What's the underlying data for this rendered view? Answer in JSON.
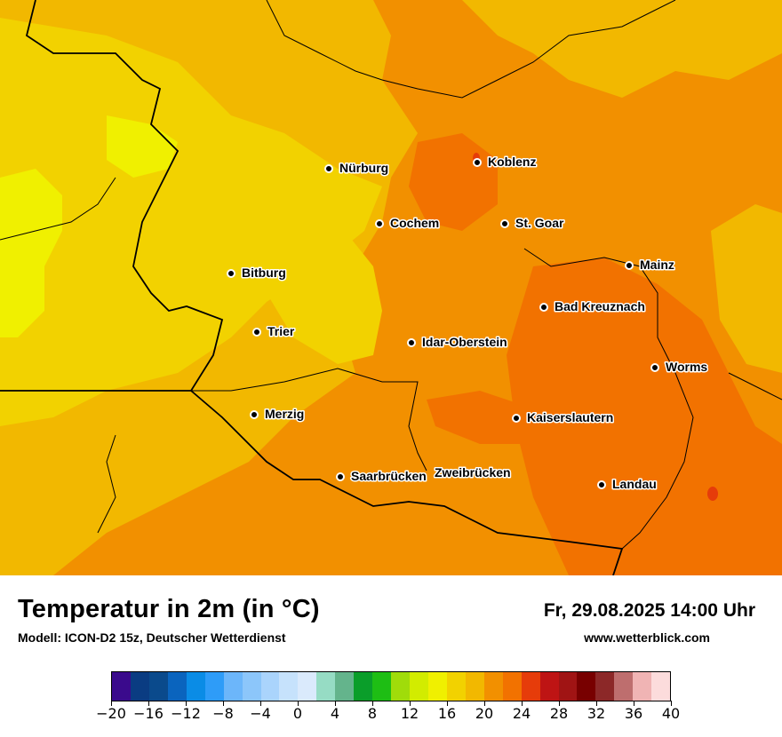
{
  "map": {
    "cities": [
      {
        "name": "Nürburg",
        "value": ""
      },
      {
        "name": "Koblenz"
      },
      {
        "name": "Cochem"
      },
      {
        "name": "St. Goar"
      },
      {
        "name": "Mainz"
      },
      {
        "name": "Bitburg"
      },
      {
        "name": "Bad Kreuznach"
      },
      {
        "name": "Trier"
      },
      {
        "name": "Idar-Oberstein"
      },
      {
        "name": "Worms"
      },
      {
        "name": "Merzig"
      },
      {
        "name": "Kaiserslautern"
      },
      {
        "name": "Saarbrücken"
      },
      {
        "name": "Zweibrücken"
      },
      {
        "name": "Landau"
      }
    ]
  },
  "footer": {
    "title": "Temperatur in 2m (in °C)",
    "model": "Modell: ICON-D2 15z, Deutscher Wetterdienst",
    "datetime": "Fr, 29.08.2025 14:00 Uhr",
    "site": "www.wetterblick.com"
  },
  "legend": {
    "colors": [
      "#3a0a8c",
      "#0a3c82",
      "#0a4a8c",
      "#0a64be",
      "#0a8ce6",
      "#2e9cf8",
      "#6cb6fa",
      "#8cc6fa",
      "#aad4fc",
      "#c6e2fc",
      "#daeafc",
      "#96dcc4",
      "#64b48c",
      "#0a9e2a",
      "#1ebe14",
      "#a0dc0a",
      "#d2ec00",
      "#f0f000",
      "#f2d200",
      "#f2b800",
      "#f29000",
      "#f27200",
      "#e63c0a",
      "#be1414",
      "#a01414",
      "#780000",
      "#8c2828",
      "#be6e6e",
      "#f0b4b4",
      "#fcdcdc"
    ],
    "tick_labels": [
      "−20",
      "−16",
      "−12",
      "−8",
      "−4",
      "0",
      "4",
      "8",
      "12",
      "16",
      "20",
      "24",
      "28",
      "32",
      "36",
      "40"
    ]
  },
  "colors": {
    "yellow_bright": "#f0f000",
    "yellow": "#f2d200",
    "gold": "#f2b800",
    "orange": "#f29000",
    "orange_dark": "#f27200",
    "red": "#e63c0a"
  }
}
